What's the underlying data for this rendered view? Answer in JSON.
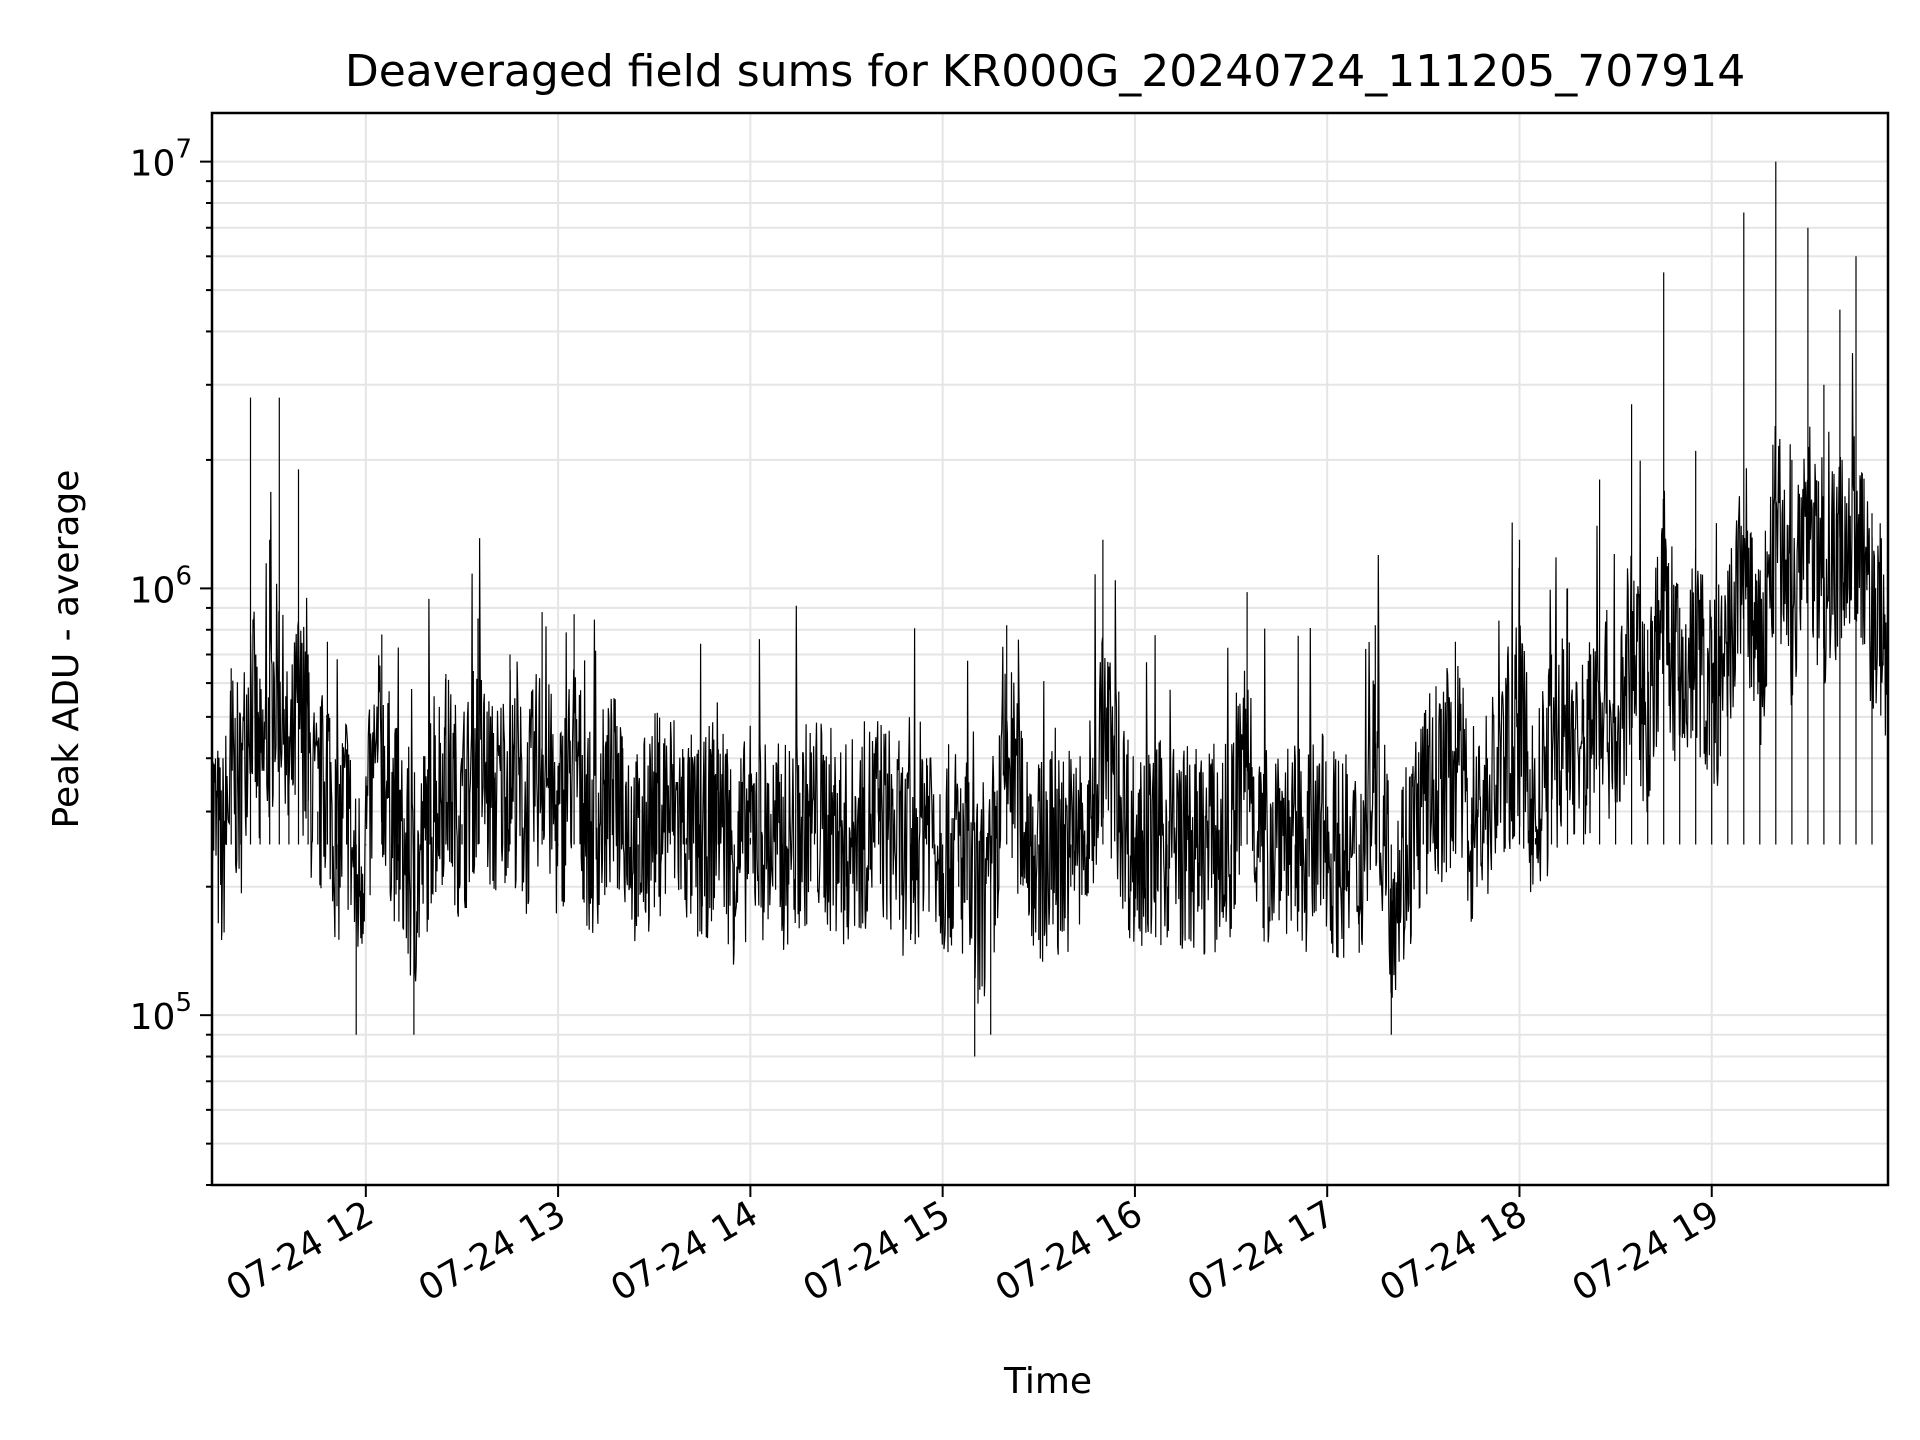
{
  "chart_data": {
    "type": "line",
    "title": "Deaveraged field sums for KR000G_20240724_111205_707914",
    "xlabel": "Time",
    "ylabel": "Peak ADU - average",
    "yscale": "log",
    "grid": true,
    "line_color": "#000000",
    "xlim": [
      "2024-07-24 11:12",
      "2024-07-24 19:55"
    ],
    "ylim": [
      40000,
      13000000
    ],
    "x_ticks": [
      "07-24 12",
      "07-24 13",
      "07-24 14",
      "07-24 15",
      "07-24 16",
      "07-24 17",
      "07-24 18",
      "07-24 19"
    ],
    "y_ticks": [
      {
        "base": "10",
        "exp": "5",
        "value": 100000
      },
      {
        "base": "10",
        "exp": "6",
        "value": 1000000
      },
      {
        "base": "10",
        "exp": "7",
        "value": 10000000
      }
    ],
    "series": [
      {
        "x": [
          "11:12",
          "11:15",
          "11:18",
          "11:21",
          "11:24",
          "11:27",
          "11:30",
          "11:33",
          "11:36",
          "11:39",
          "11:42",
          "11:45",
          "11:48",
          "11:51",
          "11:54",
          "11:57",
          "12:00",
          "12:05",
          "12:10",
          "12:15",
          "12:20",
          "12:25",
          "12:30",
          "12:35",
          "12:40",
          "12:45",
          "12:50",
          "12:55",
          "13:00",
          "13:05",
          "13:10",
          "13:15",
          "13:20",
          "13:25",
          "13:30",
          "13:35",
          "13:40",
          "13:45",
          "13:50",
          "13:55",
          "14:00",
          "14:10",
          "14:20",
          "14:30",
          "14:40",
          "14:50",
          "14:55",
          "15:00",
          "15:05",
          "15:10",
          "15:15",
          "15:20",
          "15:30",
          "15:40",
          "15:45",
          "15:50",
          "16:00",
          "16:10",
          "16:20",
          "16:30",
          "16:35",
          "16:40",
          "16:45",
          "16:50",
          "17:00",
          "17:10",
          "17:15",
          "17:20",
          "17:30",
          "17:40",
          "17:45",
          "17:50",
          "18:00",
          "18:05",
          "18:10",
          "18:15",
          "18:20",
          "18:25",
          "18:30",
          "18:35",
          "18:40",
          "18:45",
          "18:50",
          "18:55",
          "19:00",
          "19:05",
          "19:10",
          "19:15",
          "19:20",
          "19:25",
          "19:30",
          "19:35",
          "19:40",
          "19:45",
          "19:50",
          "19:55"
        ],
        "y": [
          380000,
          150000,
          650000,
          420000,
          2800000,
          520000,
          1300000,
          2800000,
          450000,
          1900000,
          700000,
          300000,
          750000,
          180000,
          420000,
          90000,
          250000,
          780000,
          230000,
          90000,
          330000,
          630000,
          280000,
          850000,
          360000,
          700000,
          300000,
          880000,
          250000,
          870000,
          220000,
          380000,
          450000,
          170000,
          320000,
          380000,
          260000,
          180000,
          420000,
          150000,
          260000,
          190000,
          320000,
          200000,
          340000,
          150000,
          400000,
          180000,
          200000,
          80000,
          90000,
          820000,
          150000,
          200000,
          190000,
          1300000,
          170000,
          220000,
          180000,
          200000,
          980000,
          160000,
          320000,
          180000,
          200000,
          140000,
          820000,
          90000,
          380000,
          750000,
          280000,
          400000,
          1300000,
          260000,
          700000,
          1000000,
          550000,
          1800000,
          500000,
          2700000,
          800000,
          5500000,
          900000,
          2100000,
          800000,
          1100000,
          7600000,
          900000,
          10000000,
          2000000,
          7000000,
          3000000,
          4500000,
          6000000,
          1500000,
          900000
        ]
      }
    ]
  }
}
